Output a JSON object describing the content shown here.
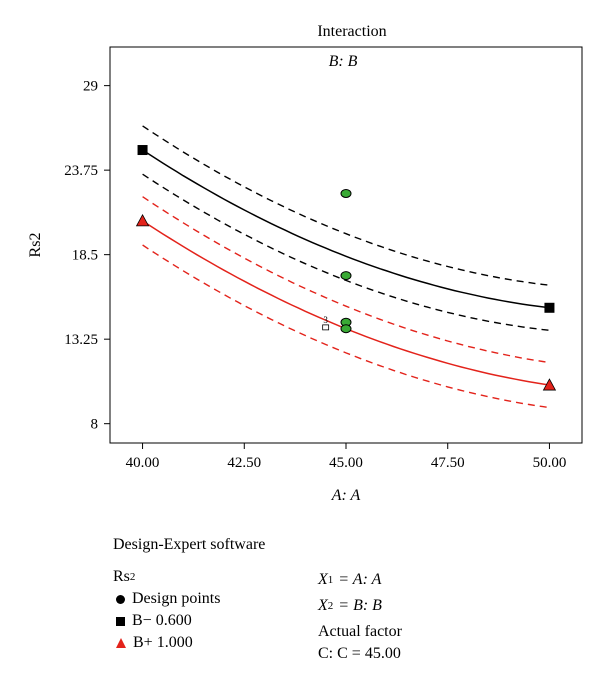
{
  "chart_data": {
    "type": "line",
    "title": "Interaction",
    "subtitle": "B: B",
    "xlabel": "A: A",
    "ylabel": "Rs2",
    "xlim": [
      39.2,
      50.8
    ],
    "ylim": [
      6.8,
      31.4
    ],
    "x_ticks": [
      40.0,
      42.5,
      45.0,
      47.5,
      50.0
    ],
    "x_tick_labels": [
      "40.00",
      "42.50",
      "45.00",
      "47.50",
      "50.00"
    ],
    "y_ticks": [
      8,
      13.25,
      18.5,
      23.75,
      29
    ],
    "y_tick_labels": [
      "8",
      "13.25",
      "18.5",
      "23.75",
      "29"
    ],
    "grid": false,
    "series": [
      {
        "name": "B− 0.600",
        "color": "#000000",
        "marker": "square",
        "x": [
          40.0,
          50.0
        ],
        "fit_points": [
          [
            40.0,
            25.0
          ],
          [
            45.0,
            18.4
          ],
          [
            50.0,
            15.2
          ]
        ],
        "ci_upper": [
          [
            40.0,
            26.5
          ],
          [
            45.0,
            19.8
          ],
          [
            50.0,
            16.6
          ]
        ],
        "ci_lower": [
          [
            40.0,
            23.5
          ],
          [
            45.0,
            16.9
          ],
          [
            50.0,
            13.8
          ]
        ]
      },
      {
        "name": "B+ 1.000",
        "color": "#e3231b",
        "marker": "triangle",
        "x": [
          40.0,
          50.0
        ],
        "fit_points": [
          [
            40.0,
            20.6
          ],
          [
            45.0,
            13.9
          ],
          [
            50.0,
            10.4
          ]
        ],
        "ci_upper": [
          [
            40.0,
            22.1
          ],
          [
            45.0,
            15.3
          ],
          [
            50.0,
            11.8
          ]
        ],
        "ci_lower": [
          [
            40.0,
            19.1
          ],
          [
            45.0,
            12.4
          ],
          [
            50.0,
            9.0
          ]
        ]
      }
    ],
    "design_points": [
      {
        "x": 45.0,
        "y": 22.3
      },
      {
        "x": 45.0,
        "y": 17.2
      },
      {
        "x": 45.0,
        "y": 14.3
      },
      {
        "x": 45.0,
        "y": 13.9
      }
    ],
    "design_point_color": "#3aaa35",
    "end_markers": [
      {
        "x": 40.0,
        "y": 25.0,
        "marker": "square",
        "color": "#000000"
      },
      {
        "x": 50.0,
        "y": 15.2,
        "marker": "square",
        "color": "#000000"
      },
      {
        "x": 40.0,
        "y": 20.6,
        "marker": "triangle",
        "color": "#e3231b"
      },
      {
        "x": 50.0,
        "y": 10.4,
        "marker": "triangle",
        "color": "#e3231b"
      }
    ],
    "annotation_label": "3",
    "annotation_point": {
      "x": 44.5,
      "y": 14.2
    }
  },
  "legend": {
    "software": "Design-Expert software",
    "response": "Rs",
    "response_sub": "2",
    "items": [
      {
        "symbol": "circle",
        "label": "Design points"
      },
      {
        "symbol": "square",
        "label": "B− 0.600"
      },
      {
        "symbol": "triangle",
        "label": "B+ 1.000"
      }
    ],
    "x1_label": "X",
    "x1_sub": "1",
    "x1_value": "= A: A",
    "x2_label": "X",
    "x2_sub": "2",
    "x2_value": "= B: B",
    "actual_factor": "Actual factor",
    "factor_value": "C: C = 45.00"
  }
}
